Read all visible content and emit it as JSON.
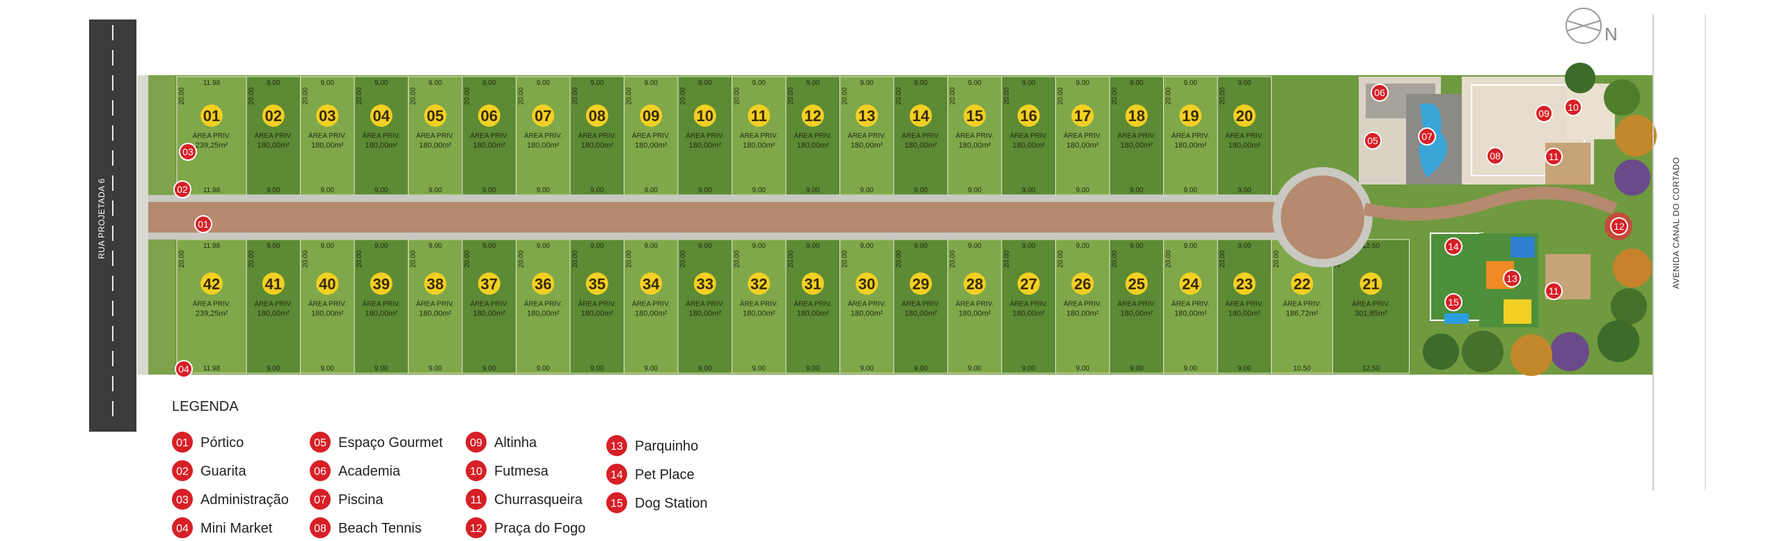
{
  "roads": {
    "street": "RUA PROJETADA 6",
    "avenue": "AVENIDA CANAL DO CORTADO"
  },
  "compass": {
    "label": "N"
  },
  "colors": {
    "lot_light": "#7fa84a",
    "lot_dark": "#5d8a34",
    "road": "#b58a6e",
    "marker": "#d71f26",
    "badge": "#f2d024"
  },
  "top_lots": [
    {
      "num": "01",
      "area": "239,25m²",
      "front": "11.98"
    },
    {
      "num": "02",
      "area": "180,00m²",
      "front": "9.00"
    },
    {
      "num": "03",
      "area": "180,00m²",
      "front": "9.00"
    },
    {
      "num": "04",
      "area": "180,00m²",
      "front": "9.00"
    },
    {
      "num": "05",
      "area": "180,00m²",
      "front": "9.00"
    },
    {
      "num": "06",
      "area": "180,00m²",
      "front": "9.00"
    },
    {
      "num": "07",
      "area": "180,00m²",
      "front": "9.00"
    },
    {
      "num": "08",
      "area": "180,00m²",
      "front": "9.00"
    },
    {
      "num": "09",
      "area": "180,00m²",
      "front": "9.00"
    },
    {
      "num": "10",
      "area": "180,00m²",
      "front": "9.00"
    },
    {
      "num": "11",
      "area": "180,00m²",
      "front": "9.00"
    },
    {
      "num": "12",
      "area": "180,00m²",
      "front": "9.00"
    },
    {
      "num": "13",
      "area": "180,00m²",
      "front": "9.00"
    },
    {
      "num": "14",
      "area": "180,00m²",
      "front": "9.00"
    },
    {
      "num": "15",
      "area": "180,00m²",
      "front": "9.00"
    },
    {
      "num": "16",
      "area": "180,00m²",
      "front": "9.00"
    },
    {
      "num": "17",
      "area": "180,00m²",
      "front": "9.00"
    },
    {
      "num": "18",
      "area": "180,00m²",
      "front": "9.00"
    },
    {
      "num": "19",
      "area": "180,00m²",
      "front": "9.00"
    },
    {
      "num": "20",
      "area": "180,00m²",
      "front": "9.00"
    }
  ],
  "bottom_lots": [
    {
      "num": "42",
      "area": "239,25m²",
      "front": "11.98"
    },
    {
      "num": "41",
      "area": "180,00m²",
      "front": "9.00"
    },
    {
      "num": "40",
      "area": "180,00m²",
      "front": "9.00"
    },
    {
      "num": "39",
      "area": "180,00m²",
      "front": "9.00"
    },
    {
      "num": "38",
      "area": "180,00m²",
      "front": "9.00"
    },
    {
      "num": "37",
      "area": "180,00m²",
      "front": "9.00"
    },
    {
      "num": "36",
      "area": "180,00m²",
      "front": "9.00"
    },
    {
      "num": "35",
      "area": "180,00m²",
      "front": "9.00"
    },
    {
      "num": "34",
      "area": "180,00m²",
      "front": "9.00"
    },
    {
      "num": "33",
      "area": "180,00m²",
      "front": "9.00"
    },
    {
      "num": "32",
      "area": "180,00m²",
      "front": "9.00"
    },
    {
      "num": "31",
      "area": "180,00m²",
      "front": "9.00"
    },
    {
      "num": "30",
      "area": "180,00m²",
      "front": "9.00"
    },
    {
      "num": "29",
      "area": "180,00m²",
      "front": "9.00"
    },
    {
      "num": "28",
      "area": "180,00m²",
      "front": "9.00"
    },
    {
      "num": "27",
      "area": "180,00m²",
      "front": "9.00"
    },
    {
      "num": "26",
      "area": "180,00m²",
      "front": "9.00"
    },
    {
      "num": "25",
      "area": "180,00m²",
      "front": "9.00"
    },
    {
      "num": "24",
      "area": "180,00m²",
      "front": "9.00"
    },
    {
      "num": "23",
      "area": "180,00m²",
      "front": "9.00"
    },
    {
      "num": "22",
      "area": "186,72m²",
      "front": "10.50"
    },
    {
      "num": "21",
      "area": "301,85m²",
      "front": "12.50"
    }
  ],
  "lot_area_label": "ÁREA PRIV.",
  "depth_label": "20.00",
  "legend": {
    "title": "LEGENDA",
    "items": [
      {
        "num": "01",
        "label": "Pórtico"
      },
      {
        "num": "02",
        "label": "Guarita"
      },
      {
        "num": "03",
        "label": "Administração"
      },
      {
        "num": "04",
        "label": "Mini Market"
      },
      {
        "num": "05",
        "label": "Espaço Gourmet"
      },
      {
        "num": "06",
        "label": "Academia"
      },
      {
        "num": "07",
        "label": "Piscina"
      },
      {
        "num": "08",
        "label": "Beach Tennis"
      },
      {
        "num": "09",
        "label": "Altinha"
      },
      {
        "num": "10",
        "label": "Futmesa"
      },
      {
        "num": "11",
        "label": "Churrasqueira"
      },
      {
        "num": "12",
        "label": "Praça do Fogo"
      },
      {
        "num": "13",
        "label": "Parquinho"
      },
      {
        "num": "14",
        "label": "Pet Place"
      },
      {
        "num": "15",
        "label": "Dog Station"
      }
    ]
  },
  "markers": [
    {
      "num": "03"
    },
    {
      "num": "02"
    },
    {
      "num": "01"
    },
    {
      "num": "04"
    },
    {
      "num": "06"
    },
    {
      "num": "05"
    },
    {
      "num": "07"
    },
    {
      "num": "08"
    },
    {
      "num": "09"
    },
    {
      "num": "10"
    },
    {
      "num": "11"
    },
    {
      "num": "12"
    },
    {
      "num": "14"
    },
    {
      "num": "13"
    },
    {
      "num": "11"
    },
    {
      "num": "15"
    }
  ]
}
